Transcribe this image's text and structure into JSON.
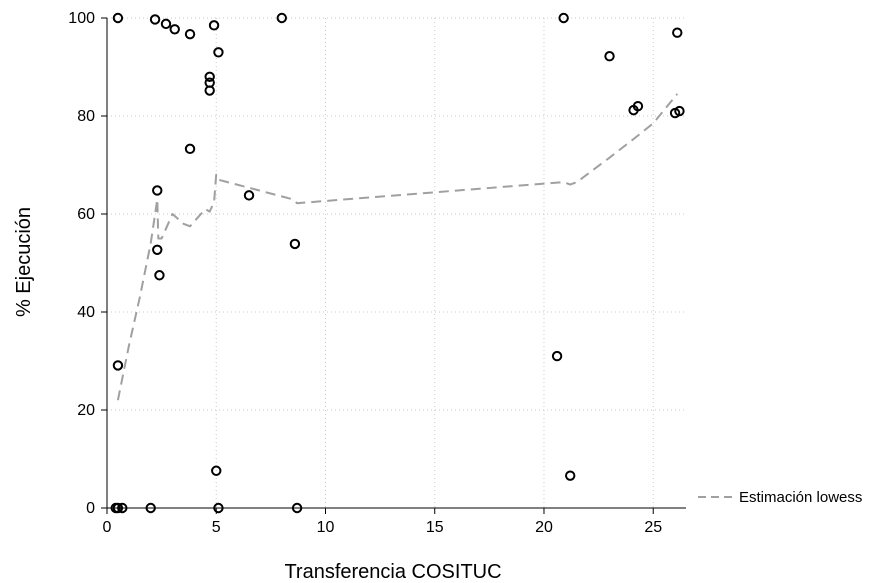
{
  "chart_data": {
    "type": "scatter",
    "xlabel": "Transferencia COSITUC",
    "ylabel": "% Ejecución",
    "xlim": [
      0,
      26.5
    ],
    "ylim": [
      0,
      100
    ],
    "x_ticks": [
      0,
      5,
      10,
      15,
      20,
      25
    ],
    "y_ticks": [
      0,
      20,
      40,
      60,
      80,
      100
    ],
    "grid": true,
    "legend_position": "right",
    "legend": [
      {
        "label": "Estimación lowess",
        "style": "dashed",
        "color": "#a0a0a0"
      }
    ],
    "series": [
      {
        "kind": "scatter",
        "marker": "hollow-circle",
        "color": "#000000",
        "points": [
          [
            0.5,
            100
          ],
          [
            2.2,
            99.7
          ],
          [
            2.7,
            98.8
          ],
          [
            3.1,
            97.7
          ],
          [
            3.8,
            96.7
          ],
          [
            4.9,
            98.5
          ],
          [
            5.1,
            93
          ],
          [
            8.0,
            100
          ],
          [
            4.7,
            88
          ],
          [
            4.7,
            86.8
          ],
          [
            4.7,
            85.2
          ],
          [
            3.8,
            73.3
          ],
          [
            2.3,
            64.8
          ],
          [
            6.5,
            63.8
          ],
          [
            8.6,
            53.9
          ],
          [
            2.3,
            52.7
          ],
          [
            2.4,
            47.5
          ],
          [
            0.5,
            29.1
          ],
          [
            5.0,
            7.6
          ],
          [
            0.4,
            0
          ],
          [
            0.5,
            0
          ],
          [
            0.7,
            0
          ],
          [
            2.0,
            0
          ],
          [
            5.1,
            0
          ],
          [
            8.7,
            0
          ],
          [
            20.9,
            100
          ],
          [
            23.0,
            92.2
          ],
          [
            26.1,
            97
          ],
          [
            24.1,
            81.2
          ],
          [
            24.3,
            82
          ],
          [
            26.0,
            80.6
          ],
          [
            26.2,
            81
          ],
          [
            20.6,
            31
          ],
          [
            21.2,
            6.6
          ]
        ]
      },
      {
        "kind": "line",
        "name": "Estimación lowess",
        "style": "dashed",
        "color": "#a0a0a0",
        "points": [
          [
            0.5,
            22
          ],
          [
            1.0,
            33
          ],
          [
            1.5,
            43
          ],
          [
            2.0,
            54
          ],
          [
            2.3,
            63
          ],
          [
            2.35,
            55
          ],
          [
            2.5,
            55
          ],
          [
            3.0,
            60
          ],
          [
            3.5,
            58
          ],
          [
            3.8,
            57.5
          ],
          [
            4.5,
            61
          ],
          [
            4.7,
            60.5
          ],
          [
            4.9,
            62.5
          ],
          [
            5.0,
            68
          ],
          [
            5.1,
            67
          ],
          [
            8.5,
            63
          ],
          [
            8.7,
            62.2
          ],
          [
            20.9,
            66.5
          ],
          [
            21.2,
            66
          ],
          [
            21.5,
            66.5
          ],
          [
            23.0,
            71.5
          ],
          [
            24.1,
            75.3
          ],
          [
            24.3,
            76
          ],
          [
            25.0,
            78.5
          ],
          [
            26.1,
            84.5
          ]
        ]
      }
    ]
  }
}
